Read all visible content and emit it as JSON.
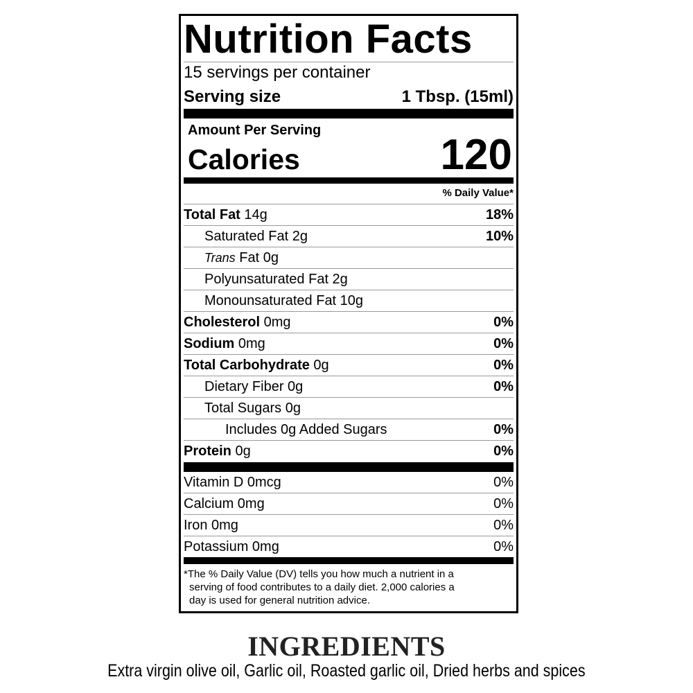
{
  "label": {
    "title": "Nutrition Facts",
    "servings_per_container": "15 servings per container",
    "serving_size_label": "Serving size",
    "serving_size_value": "1 Tbsp. (15ml)",
    "amount_per_serving": "Amount Per Serving",
    "calories_label": "Calories",
    "calories_value": "120",
    "daily_value_header": "% Daily Value*",
    "nutrients": [
      {
        "name": "Total Fat",
        "amount": " 14g",
        "dv": "18%"
      },
      {
        "name": "Saturated Fat 2g",
        "dv": "10%"
      },
      {
        "name_italic": "Trans",
        "name": " Fat 0g"
      },
      {
        "name": "Polyunsaturated Fat 2g"
      },
      {
        "name": "Monounsaturated Fat 10g"
      },
      {
        "name": "Cholesterol",
        "amount": " 0mg",
        "dv": "0%"
      },
      {
        "name": "Sodium",
        "amount": " 0mg",
        "dv": "0%"
      },
      {
        "name": "Total Carbohydrate",
        "amount": " 0g",
        "dv": "0%"
      },
      {
        "name": "Dietary Fiber 0g",
        "dv": "0%"
      },
      {
        "name": "Total Sugars 0g"
      },
      {
        "name": "Includes 0g Added Sugars",
        "dv": "0%"
      },
      {
        "name": "Protein",
        "amount": " 0g",
        "dv": "0%"
      }
    ],
    "vitamins": [
      {
        "name": "Vitamin D 0mcg",
        "dv": "0%"
      },
      {
        "name": "Calcium 0mg",
        "dv": "0%"
      },
      {
        "name": "Iron 0mg",
        "dv": "0%"
      },
      {
        "name": "Potassium 0mg",
        "dv": "0%"
      }
    ],
    "footnote_line1": "*The % Daily Value (DV) tells you how much a nutrient in a",
    "footnote_line2": "serving of food contributes to a daily diet. 2,000 calories a",
    "footnote_line3": "day is used for general nutrition advice."
  },
  "ingredients": {
    "heading": "INGREDIENTS",
    "text": "Extra virgin olive oil, Garlic oil, Roasted garlic oil, Dried herbs and spices"
  }
}
